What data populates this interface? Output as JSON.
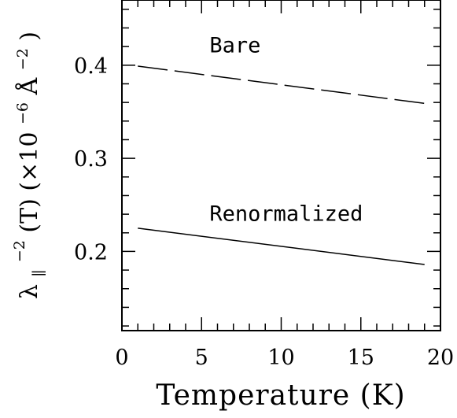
{
  "chart_data": {
    "type": "line",
    "title": "",
    "xlabel": "Temperature (K)",
    "ylabel": {
      "symbol": "λ",
      "subscript": "∥",
      "superscript": "−2",
      "argument": " (T)  (×10",
      "exponent1": "−6",
      "unit": " Å",
      "exponent2": "−2",
      "close": ")"
    },
    "xlim": [
      0,
      20
    ],
    "ylim": [
      0.115,
      0.47
    ],
    "xticks": [
      0,
      5,
      10,
      15,
      20
    ],
    "xtick_labels": [
      "0",
      "5",
      "10",
      "15",
      "20"
    ],
    "yticks": [
      0.2,
      0.3,
      0.4
    ],
    "ytick_labels": [
      "0.2",
      "0.3",
      "0.4"
    ],
    "grid": false,
    "legend": "none",
    "series": [
      {
        "name": "Bare",
        "style": "dashed",
        "color": "#000000",
        "x": [
          1,
          19
        ],
        "y": [
          0.399,
          0.359
        ]
      },
      {
        "name": "Renormalized",
        "style": "solid",
        "color": "#000000",
        "x": [
          1,
          19
        ],
        "y": [
          0.225,
          0.186
        ]
      }
    ],
    "annotations": [
      {
        "text": "Bare",
        "x": 5.5,
        "y": 0.414
      },
      {
        "text": "Renormalized",
        "x": 5.5,
        "y": 0.233
      }
    ]
  }
}
